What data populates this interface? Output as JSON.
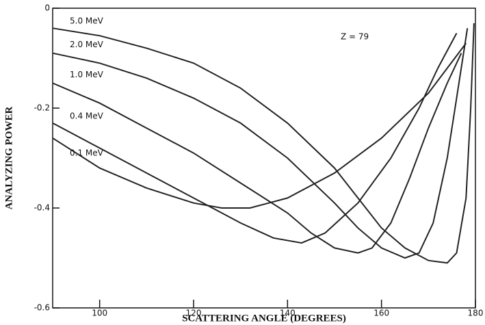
{
  "chart_data": {
    "type": "line",
    "xlabel": "SCATTERING ANGLE (DEGREES)",
    "ylabel": "ANALYZING POWER",
    "annotation": "Z = 79",
    "xlim": [
      90,
      180
    ],
    "xticks": [
      100,
      120,
      140,
      160,
      180
    ],
    "ylim": [
      -0.6,
      0
    ],
    "yticks": [
      0,
      -0.2,
      -0.4,
      -0.6
    ],
    "series": [
      {
        "name": "5.0 MeV",
        "color": "#222222",
        "x": [
          90,
          100,
          110,
          120,
          130,
          140,
          150,
          155,
          160,
          165,
          170,
          174,
          176,
          178,
          179,
          179.7
        ],
        "values": [
          -0.04,
          -0.055,
          -0.08,
          -0.11,
          -0.16,
          -0.23,
          -0.32,
          -0.38,
          -0.44,
          -0.48,
          -0.505,
          -0.51,
          -0.49,
          -0.38,
          -0.2,
          -0.03
        ]
      },
      {
        "name": "2.0 MeV",
        "color": "#222222",
        "x": [
          90,
          100,
          110,
          120,
          130,
          140,
          150,
          155,
          160,
          165,
          168,
          171,
          174,
          176,
          178.3
        ],
        "values": [
          -0.09,
          -0.11,
          -0.14,
          -0.18,
          -0.23,
          -0.3,
          -0.39,
          -0.44,
          -0.48,
          -0.5,
          -0.49,
          -0.43,
          -0.3,
          -0.18,
          -0.04
        ]
      },
      {
        "name": "1.0 MeV",
        "color": "#222222",
        "x": [
          90,
          100,
          110,
          120,
          130,
          140,
          145,
          150,
          155,
          158,
          162,
          166,
          170,
          174,
          177
        ],
        "values": [
          -0.15,
          -0.19,
          -0.24,
          -0.29,
          -0.35,
          -0.41,
          -0.45,
          -0.48,
          -0.49,
          -0.48,
          -0.43,
          -0.34,
          -0.24,
          -0.15,
          -0.09
        ]
      },
      {
        "name": "0.4 MeV",
        "color": "#222222",
        "x": [
          90,
          100,
          110,
          120,
          130,
          137,
          143,
          148,
          155,
          162,
          168,
          172,
          176
        ],
        "values": [
          -0.23,
          -0.28,
          -0.33,
          -0.38,
          -0.43,
          -0.46,
          -0.47,
          -0.45,
          -0.39,
          -0.3,
          -0.2,
          -0.12,
          -0.05
        ]
      },
      {
        "name": "0.1 MeV",
        "color": "#222222",
        "x": [
          90,
          100,
          110,
          120,
          126,
          132,
          140,
          150,
          160,
          170,
          178
        ],
        "values": [
          -0.26,
          -0.32,
          -0.36,
          -0.39,
          -0.4,
          -0.4,
          -0.38,
          -0.33,
          -0.26,
          -0.17,
          -0.07
        ]
      }
    ]
  }
}
